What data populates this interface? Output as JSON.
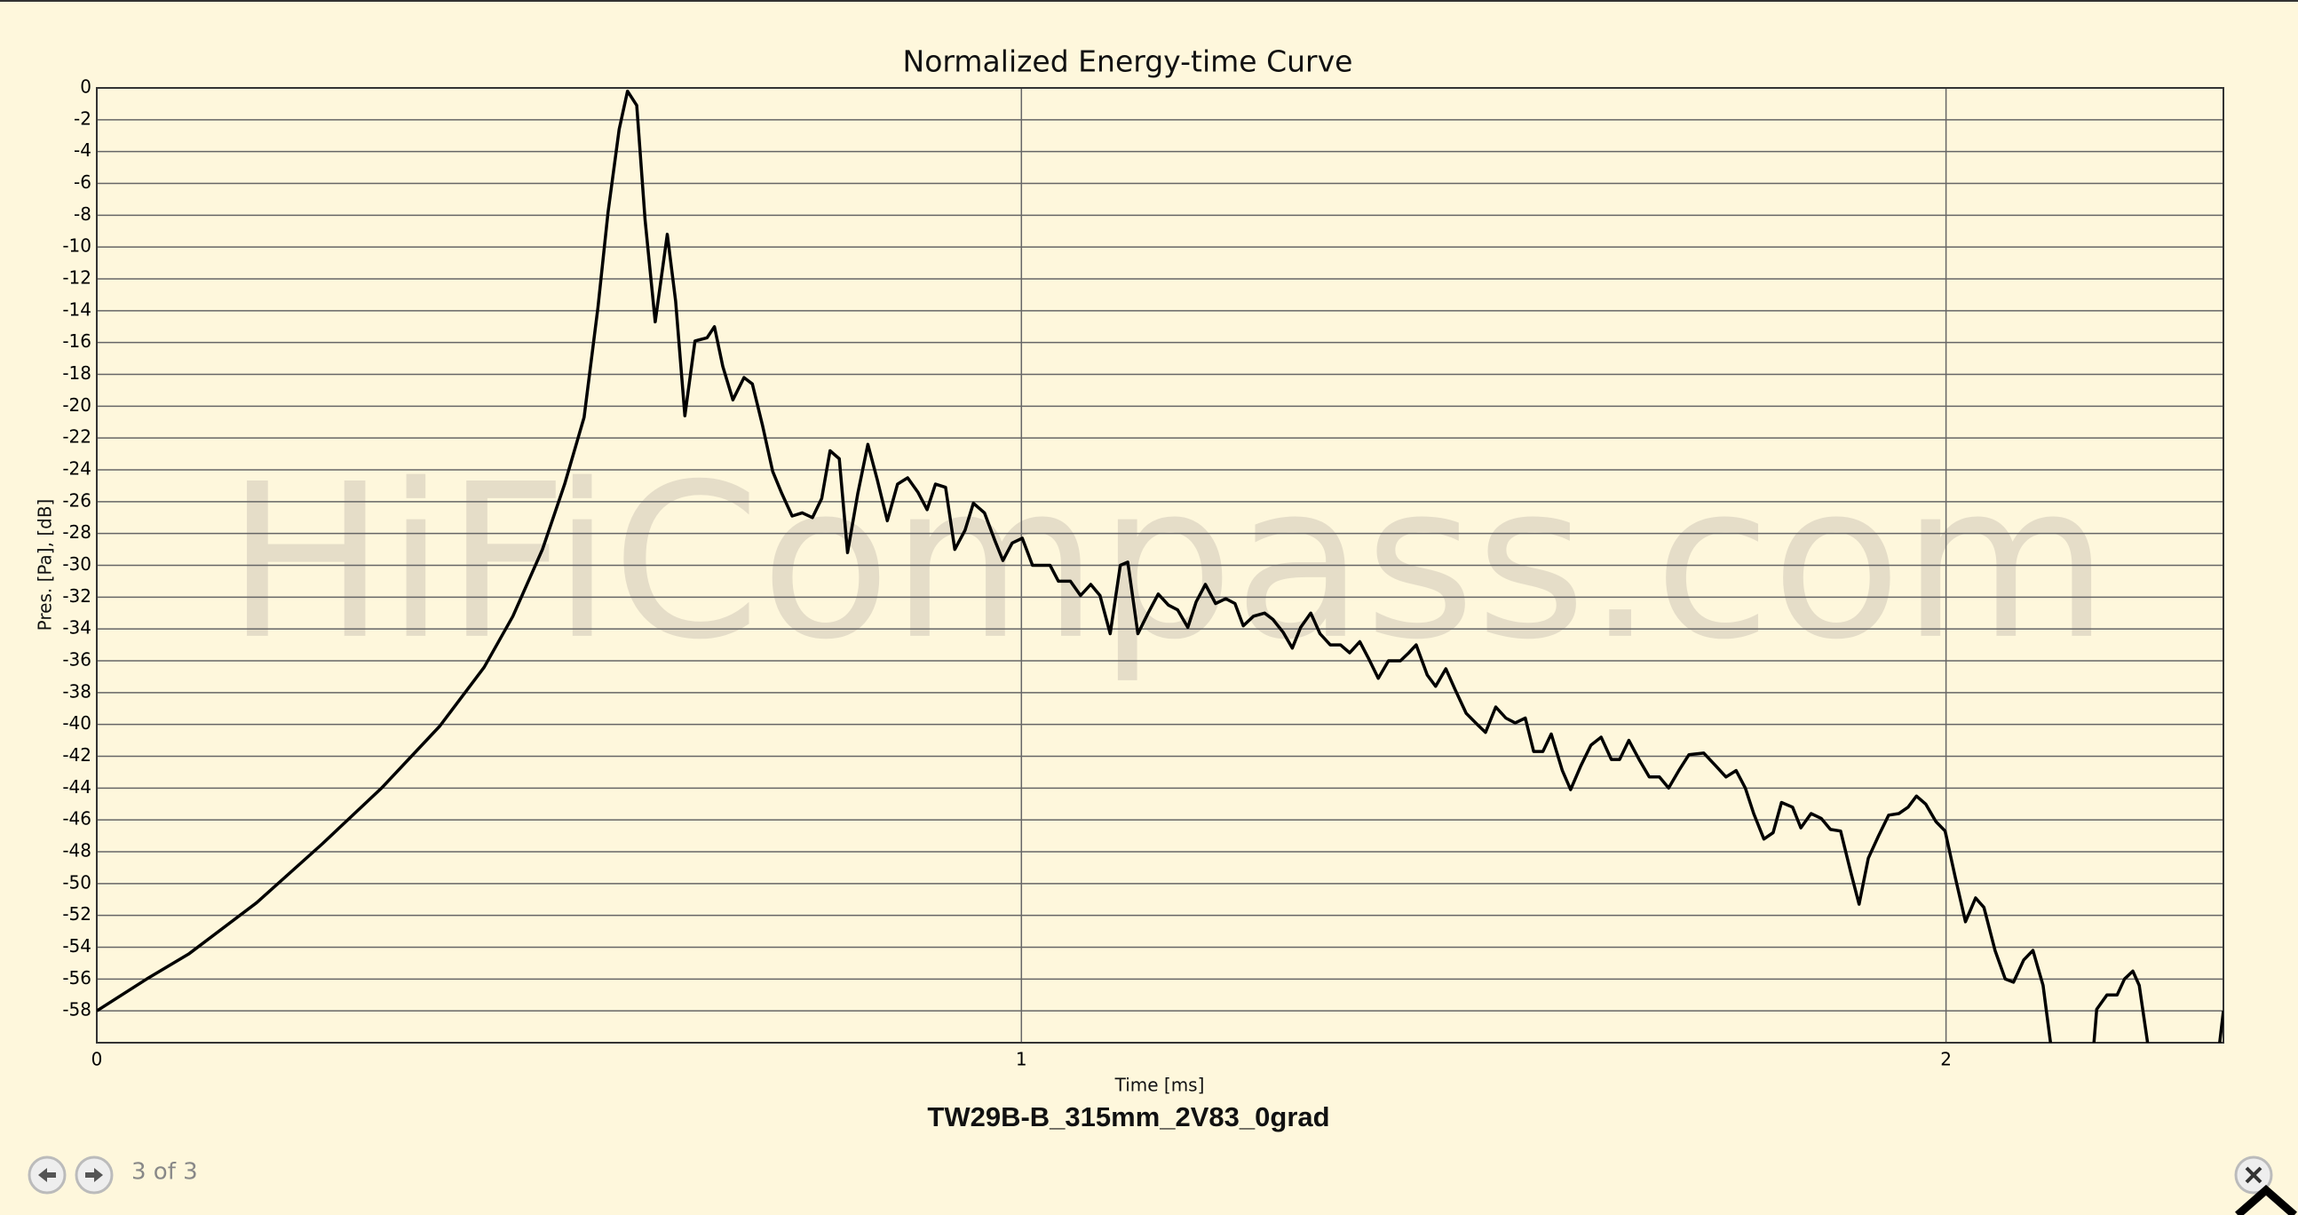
{
  "chart_data": {
    "type": "line",
    "title": "Normalized Energy-time Curve",
    "subtitle": "TW29B-B_315mm_2V83_0grad",
    "x_label": "Time [ms]",
    "y_label": "Pres. [Pa], [dB]",
    "watermark": "HiFiCompass.com",
    "color": "#000000",
    "grid": true,
    "xlim": [
      0,
      2.3
    ],
    "ylim": [
      -60,
      0
    ],
    "xticks": [
      0,
      1,
      2
    ],
    "yticks": [
      0,
      -2,
      -4,
      -6,
      -8,
      -10,
      -12,
      -14,
      -16,
      -18,
      -20,
      -22,
      -24,
      -26,
      -28,
      -30,
      -32,
      -34,
      -36,
      -38,
      -40,
      -42,
      -44,
      -46,
      -48,
      -50,
      -52,
      -54,
      -56,
      -58
    ],
    "x": [
      0,
      0.054,
      0.1,
      0.173,
      0.244,
      0.308,
      0.371,
      0.419,
      0.45,
      0.482,
      0.506,
      0.527,
      0.542,
      0.553,
      0.565,
      0.574,
      0.584,
      0.593,
      0.604,
      0.617,
      0.626,
      0.636,
      0.647,
      0.66,
      0.668,
      0.677,
      0.688,
      0.7,
      0.709,
      0.72,
      0.731,
      0.741,
      0.752,
      0.763,
      0.774,
      0.784,
      0.793,
      0.803,
      0.812,
      0.823,
      0.834,
      0.844,
      0.855,
      0.866,
      0.877,
      0.888,
      0.898,
      0.907,
      0.918,
      0.928,
      0.939,
      0.948,
      0.96,
      0.971,
      0.98,
      0.99,
      1.001,
      1.012,
      1.031,
      1.04,
      1.053,
      1.064,
      1.075,
      1.085,
      1.096,
      1.107,
      1.115,
      1.126,
      1.137,
      1.148,
      1.159,
      1.169,
      1.18,
      1.189,
      1.199,
      1.21,
      1.221,
      1.231,
      1.24,
      1.251,
      1.263,
      1.272,
      1.283,
      1.293,
      1.302,
      1.313,
      1.323,
      1.334,
      1.345,
      1.355,
      1.366,
      1.375,
      1.386,
      1.397,
      1.41,
      1.419,
      1.427,
      1.439,
      1.448,
      1.459,
      1.469,
      1.481,
      1.493,
      1.502,
      1.513,
      1.524,
      1.534,
      1.545,
      1.554,
      1.564,
      1.573,
      1.585,
      1.594,
      1.605,
      1.616,
      1.627,
      1.638,
      1.647,
      1.657,
      1.668,
      1.679,
      1.69,
      1.7,
      1.711,
      1.722,
      1.738,
      1.751,
      1.762,
      1.773,
      1.783,
      1.792,
      1.803,
      1.813,
      1.822,
      1.834,
      1.843,
      1.854,
      1.865,
      1.875,
      1.886,
      1.897,
      1.906,
      1.916,
      1.927,
      1.938,
      1.949,
      1.959,
      1.968,
      1.978,
      1.989,
      1.999,
      2.01,
      2.021,
      2.032,
      2.041,
      2.053,
      2.064,
      2.073,
      2.084,
      2.094,
      2.105,
      2.113,
      2.14,
      2.16,
      2.163,
      2.174,
      2.185,
      2.193,
      2.202,
      2.209,
      2.218,
      2.26,
      2.296,
      2.3
    ],
    "values": [
      -58,
      -56,
      -54.4,
      -51.2,
      -47.5,
      -44,
      -40.1,
      -36.4,
      -33.2,
      -29,
      -24.9,
      -20.7,
      -13.8,
      -7.8,
      -2.6,
      -0.2,
      -1.1,
      -8.3,
      -14.7,
      -9.2,
      -13.4,
      -20.6,
      -15.9,
      -15.7,
      -15,
      -17.5,
      -19.6,
      -18.2,
      -18.6,
      -21.2,
      -24.1,
      -25.5,
      -26.9,
      -26.7,
      -27,
      -25.8,
      -22.8,
      -23.3,
      -29.2,
      -25.5,
      -22.4,
      -24.6,
      -27.2,
      -24.9,
      -24.5,
      -25.4,
      -26.5,
      -24.9,
      -25.1,
      -29,
      -27.8,
      -26.1,
      -26.7,
      -28.4,
      -29.7,
      -28.6,
      -28.3,
      -30,
      -30,
      -31,
      -31,
      -31.9,
      -31.2,
      -31.9,
      -34.3,
      -30,
      -29.8,
      -34.3,
      -33,
      -31.8,
      -32.5,
      -32.8,
      -33.9,
      -32.3,
      -31.2,
      -32.4,
      -32.1,
      -32.4,
      -33.8,
      -33.2,
      -33,
      -33.4,
      -34.2,
      -35.2,
      -33.9,
      -33,
      -34.3,
      -35,
      -35,
      -35.5,
      -34.8,
      -35.8,
      -37.1,
      -36,
      -36,
      -35.5,
      -35,
      -36.9,
      -37.6,
      -36.5,
      -37.8,
      -39.3,
      -40,
      -40.5,
      -38.9,
      -39.6,
      -39.9,
      -39.6,
      -41.7,
      -41.7,
      -40.6,
      -42.9,
      -44.1,
      -42.6,
      -41.3,
      -40.8,
      -42.2,
      -42.2,
      -41,
      -42.2,
      -43.3,
      -43.3,
      -44,
      -42.9,
      -41.9,
      -41.8,
      -42.6,
      -43.3,
      -42.9,
      -44,
      -45.6,
      -47.2,
      -46.8,
      -44.9,
      -45.2,
      -46.5,
      -45.6,
      -45.9,
      -46.6,
      -46.7,
      -49.3,
      -51.3,
      -48.4,
      -47,
      -45.7,
      -45.6,
      -45.2,
      -44.5,
      -45,
      -46.1,
      -46.7,
      -49.6,
      -52.4,
      -50.9,
      -51.5,
      -54.2,
      -56,
      -56.2,
      -54.8,
      -54.2,
      -56.4,
      -60,
      null,
      -60,
      -57.9,
      -57,
      -57,
      -56,
      -55.5,
      -56.4,
      -60,
      null,
      -60,
      -58
    ]
  },
  "viewer": {
    "counter": "3 of 3"
  }
}
